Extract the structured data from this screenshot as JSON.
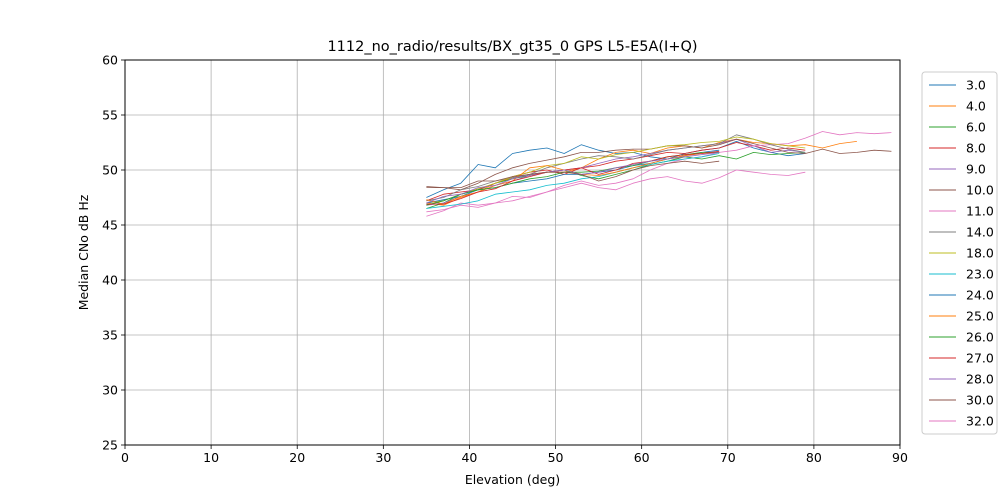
{
  "chart_data": {
    "type": "line",
    "title": "1112_no_radio/results/BX_gt35_0 GPS L5-E5A(I+Q)",
    "xlabel": "Elevation (deg)",
    "ylabel": "Median CNo dB Hz",
    "xlim": [
      0,
      90
    ],
    "ylim": [
      25,
      60
    ],
    "xticks": [
      0,
      10,
      20,
      30,
      40,
      50,
      60,
      70,
      80,
      90
    ],
    "yticks": [
      25,
      30,
      35,
      40,
      45,
      50,
      55,
      60
    ],
    "grid": true,
    "legend_position": "right",
    "series": [
      {
        "name": "3.0",
        "color": "#1f77b4",
        "x": [
          35,
          37,
          39,
          41,
          43,
          45,
          47,
          49,
          51,
          53,
          55,
          57,
          59,
          61,
          63,
          65,
          67,
          69,
          71,
          73,
          75,
          77,
          79
        ],
        "y": [
          47.5,
          48.2,
          48.8,
          50.5,
          50.2,
          51.5,
          51.8,
          52.0,
          51.5,
          52.3,
          51.8,
          51.5,
          51.6,
          51.2,
          51.0,
          51.5,
          51.8,
          52.0,
          52.6,
          52.0,
          51.6,
          51.3,
          51.5
        ]
      },
      {
        "name": "4.0",
        "color": "#ff7f0e",
        "x": [
          35,
          37,
          39,
          41,
          43,
          45,
          47,
          49,
          51,
          53,
          55,
          57,
          59,
          61,
          63,
          65,
          67,
          69,
          71,
          73,
          75,
          77,
          79,
          81,
          83,
          85
        ],
        "y": [
          47.0,
          46.8,
          47.5,
          48.0,
          48.8,
          49.3,
          49.6,
          49.8,
          49.8,
          50.2,
          51.0,
          51.6,
          51.8,
          51.5,
          52.0,
          52.2,
          52.0,
          52.5,
          52.8,
          52.5,
          52.4,
          52.2,
          52.3,
          52.0,
          52.4,
          52.6
        ]
      },
      {
        "name": "6.0",
        "color": "#2ca02c",
        "x": [
          35,
          37,
          39,
          41,
          43,
          45,
          47,
          49,
          51,
          53,
          55,
          57,
          59,
          61,
          63,
          65,
          67,
          69,
          71,
          73,
          75,
          77,
          79
        ],
        "y": [
          46.5,
          47.0,
          47.8,
          48.2,
          48.8,
          49.2,
          49.5,
          49.8,
          50.0,
          49.5,
          49.2,
          49.6,
          50.0,
          50.5,
          50.8,
          51.2,
          51.0,
          51.3,
          51.0,
          51.6,
          51.4,
          51.5,
          51.6
        ]
      },
      {
        "name": "8.0",
        "color": "#d62728",
        "x": [
          35,
          37,
          39,
          41,
          43,
          45,
          47,
          49,
          51,
          53,
          55,
          57,
          59,
          61,
          63,
          65,
          67,
          69,
          71,
          73,
          75,
          77,
          79
        ],
        "y": [
          47.2,
          47.8,
          48.0,
          48.2,
          48.8,
          49.4,
          49.8,
          50.0,
          49.6,
          50.2,
          50.4,
          50.8,
          51.0,
          51.3,
          51.6,
          51.5,
          51.8,
          52.0,
          52.5,
          52.2,
          51.8,
          52.0,
          51.8
        ]
      },
      {
        "name": "9.0",
        "color": "#9467bd",
        "x": [
          35,
          37,
          39,
          41,
          43,
          45,
          47,
          49,
          51,
          53,
          55,
          57,
          59,
          61,
          63,
          65,
          67,
          69,
          71,
          73,
          75,
          77,
          79
        ],
        "y": [
          46.8,
          47.0,
          47.6,
          48.0,
          48.6,
          49.0,
          49.5,
          49.8,
          50.0,
          50.2,
          50.6,
          51.0,
          51.2,
          51.5,
          51.8,
          52.0,
          52.2,
          52.4,
          52.8,
          52.2,
          51.6,
          51.8,
          51.6
        ]
      },
      {
        "name": "10.0",
        "color": "#8c564b",
        "x": [
          35,
          37,
          39,
          41,
          43,
          45,
          47,
          49,
          51,
          53,
          55,
          57,
          59,
          61,
          63,
          65,
          67,
          69,
          71,
          73,
          75,
          77,
          79,
          81,
          83,
          85,
          87,
          89
        ],
        "y": [
          48.4,
          48.4,
          48.2,
          48.8,
          49.6,
          50.2,
          50.6,
          50.9,
          51.2,
          51.6,
          51.6,
          51.8,
          51.9,
          51.9,
          52.2,
          52.2,
          52.0,
          52.3,
          52.8,
          52.4,
          52.0,
          51.6,
          51.5,
          51.9,
          51.5,
          51.6,
          51.8,
          51.7
        ]
      },
      {
        "name": "11.0",
        "color": "#e377c2",
        "x": [
          35,
          37,
          39,
          41,
          43,
          45,
          47,
          49,
          51,
          53,
          55,
          57,
          59,
          61,
          63,
          65,
          67,
          69,
          71,
          73,
          75,
          77,
          79,
          81,
          83,
          85,
          87,
          89
        ],
        "y": [
          45.8,
          46.3,
          47.0,
          46.8,
          47.0,
          47.6,
          47.5,
          48.0,
          48.6,
          49.0,
          48.6,
          48.8,
          49.2,
          50.0,
          50.6,
          51.0,
          51.2,
          51.6,
          51.8,
          52.2,
          52.3,
          52.4,
          52.9,
          53.5,
          53.2,
          53.4,
          53.3,
          53.4
        ]
      },
      {
        "name": "14.0",
        "color": "#7f7f7f",
        "x": [
          35,
          37,
          39,
          41,
          43,
          45,
          47,
          49,
          51,
          53,
          55,
          57,
          59,
          61,
          63,
          65,
          67,
          69,
          71,
          73,
          75,
          77,
          79
        ],
        "y": [
          47.2,
          47.5,
          48.2,
          48.5,
          49.0,
          49.3,
          49.6,
          50.2,
          50.6,
          51.0,
          51.3,
          51.2,
          51.0,
          51.4,
          51.8,
          52.0,
          52.2,
          52.4,
          53.2,
          52.8,
          52.3,
          51.9,
          51.6
        ]
      },
      {
        "name": "18.0",
        "color": "#bcbd22",
        "x": [
          35,
          37,
          39,
          41,
          43,
          45,
          47,
          49,
          51,
          53,
          55,
          57,
          59,
          61,
          63,
          65,
          67,
          69,
          71,
          73,
          75,
          77,
          79
        ],
        "y": [
          47.0,
          47.2,
          47.8,
          48.3,
          48.8,
          49.4,
          49.8,
          50.4,
          50.6,
          51.2,
          51.0,
          51.4,
          51.6,
          51.9,
          52.2,
          52.3,
          52.5,
          52.6,
          53.0,
          52.8,
          52.4,
          52.2,
          52.0
        ]
      },
      {
        "name": "23.0",
        "color": "#17becf",
        "x": [
          35,
          37,
          39,
          41,
          43,
          45,
          47,
          49,
          51,
          53,
          55,
          57,
          59,
          61,
          63,
          65,
          67,
          69
        ],
        "y": [
          46.5,
          46.7,
          46.9,
          47.2,
          47.8,
          48.0,
          48.2,
          48.6,
          48.8,
          49.2,
          49.4,
          49.8,
          50.2,
          50.5,
          50.8,
          51.0,
          51.2,
          51.5
        ]
      },
      {
        "name": "24.0",
        "color": "#1f77b4",
        "x": [
          35,
          37,
          39,
          41,
          43,
          45,
          47,
          49,
          51,
          53,
          55,
          57,
          59,
          61,
          63,
          65,
          67,
          69
        ],
        "y": [
          47.0,
          47.3,
          47.6,
          48.2,
          48.4,
          48.8,
          49.0,
          49.2,
          49.6,
          49.6,
          49.8,
          50.0,
          50.4,
          50.6,
          51.0,
          51.3,
          51.6,
          51.8
        ]
      },
      {
        "name": "25.0",
        "color": "#ff7f0e",
        "x": [
          35,
          37,
          39,
          41,
          43,
          45,
          47,
          49,
          51,
          53,
          55,
          57,
          59,
          61,
          63,
          65,
          67,
          69
        ],
        "y": [
          47.3,
          46.9,
          47.6,
          48.0,
          48.6,
          49.0,
          50.2,
          50.4,
          50.0,
          49.6,
          49.5,
          49.8,
          50.2,
          50.6,
          51.0,
          51.3,
          51.5,
          51.6
        ]
      },
      {
        "name": "26.0",
        "color": "#2ca02c",
        "x": [
          35,
          37,
          39,
          41,
          43,
          45,
          47,
          49,
          51,
          53,
          55,
          57,
          59,
          61,
          63,
          65,
          67,
          69
        ],
        "y": [
          46.8,
          47.2,
          47.8,
          48.2,
          48.4,
          48.8,
          49.2,
          49.4,
          49.8,
          49.8,
          49.9,
          50.2,
          50.4,
          50.8,
          51.2,
          51.4,
          51.6,
          51.6
        ]
      },
      {
        "name": "27.0",
        "color": "#d62728",
        "x": [
          35,
          37,
          39,
          41,
          43,
          45,
          47,
          49,
          51,
          53,
          55,
          57,
          59,
          61,
          63,
          65,
          67,
          69
        ],
        "y": [
          46.9,
          46.9,
          47.4,
          48.0,
          48.3,
          49.0,
          49.4,
          49.8,
          50.0,
          50.2,
          49.6,
          50.0,
          50.6,
          50.8,
          51.2,
          51.4,
          51.5,
          51.7
        ]
      },
      {
        "name": "28.0",
        "color": "#9467bd",
        "x": [
          35,
          37,
          39,
          41,
          43,
          45,
          47,
          49,
          51,
          53,
          55,
          57,
          59,
          61,
          63,
          65,
          67,
          69
        ],
        "y": [
          47.0,
          47.6,
          47.8,
          48.4,
          48.6,
          49.2,
          49.6,
          49.8,
          50.0,
          49.6,
          49.8,
          50.2,
          50.5,
          50.8,
          51.0,
          51.2,
          51.4,
          51.6
        ]
      },
      {
        "name": "30.0",
        "color": "#8c564b",
        "x": [
          35,
          37,
          39,
          41,
          43,
          45,
          47,
          49,
          51,
          53,
          55,
          57,
          59,
          61,
          63,
          65,
          67,
          69
        ],
        "y": [
          48.5,
          48.4,
          48.4,
          49.0,
          49.0,
          49.4,
          49.6,
          49.8,
          49.8,
          49.6,
          49.0,
          49.4,
          50.0,
          50.4,
          50.6,
          50.8,
          50.6,
          50.8
        ]
      },
      {
        "name": "32.0",
        "color": "#e377c2",
        "x": [
          35,
          37,
          39,
          41,
          43,
          45,
          47,
          49,
          51,
          53,
          55,
          57,
          59,
          61,
          63,
          65,
          67,
          69,
          71,
          73,
          75,
          77,
          79
        ],
        "y": [
          46.2,
          46.4,
          46.8,
          46.6,
          47.0,
          47.2,
          47.6,
          48.0,
          48.4,
          48.8,
          48.4,
          48.2,
          48.8,
          49.2,
          49.4,
          49.0,
          48.8,
          49.3,
          50.0,
          49.8,
          49.6,
          49.5,
          49.8
        ]
      }
    ]
  }
}
